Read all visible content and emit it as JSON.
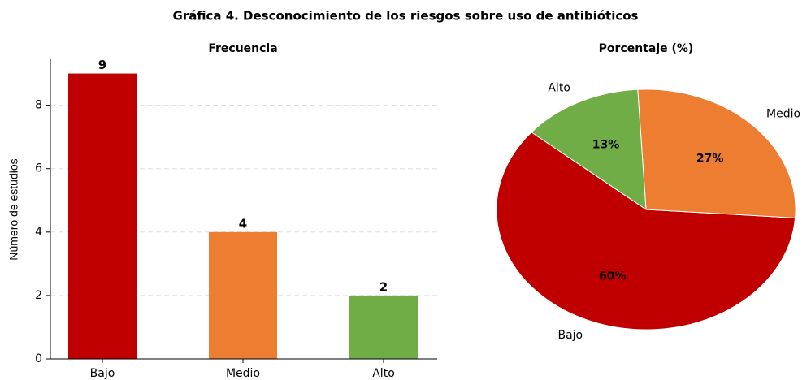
{
  "title": "Gráfica 4. Desconocimiento de los riesgos sobre uso de antibióticos",
  "chart_data": [
    {
      "type": "bar",
      "title": "Frecuencia",
      "ylabel": "Número de estudios",
      "categories": [
        "Bajo",
        "Medio",
        "Alto"
      ],
      "values": [
        9,
        4,
        2
      ],
      "colors": [
        "#c00000",
        "#ed7d31",
        "#70ad47"
      ],
      "ylim": [
        0,
        9.45
      ],
      "yticks": [
        0,
        2,
        4,
        6,
        8
      ],
      "grid": true
    },
    {
      "type": "pie",
      "title": "Porcentaje (%)",
      "categories": [
        "Bajo",
        "Medio",
        "Alto"
      ],
      "values": [
        60,
        27,
        13
      ],
      "value_labels": [
        "60%",
        "27%",
        "13%"
      ],
      "colors": [
        "#c00000",
        "#ed7d31",
        "#70ad47"
      ]
    }
  ]
}
